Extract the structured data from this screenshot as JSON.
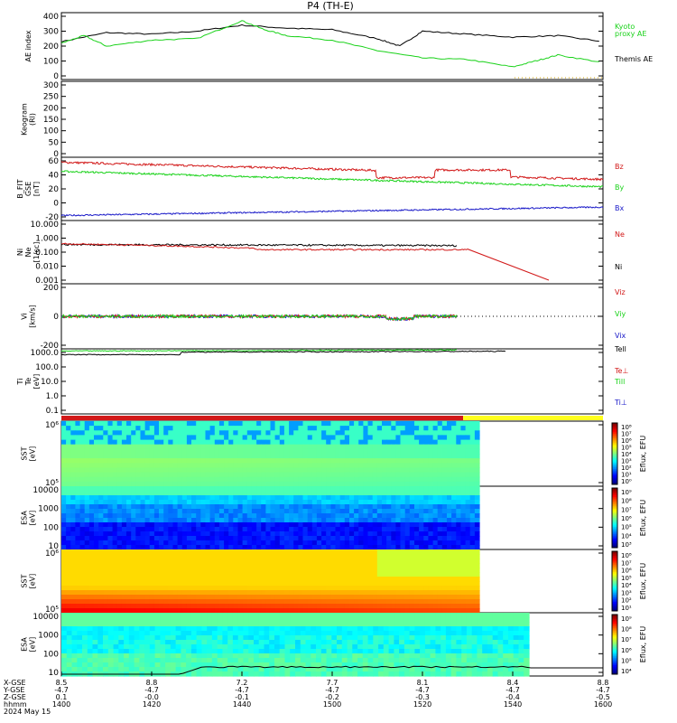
{
  "title": "P4  (TH-E)",
  "colors": {
    "black": "#000000",
    "green": "#19d219",
    "red": "#d21919",
    "blue": "#1919c8",
    "orange_dotted": "#d2a000",
    "bar_red": "#d21919",
    "bar_yellow": "#ffff1e"
  },
  "panels": {
    "ae": {
      "ylabel": "AE index",
      "ticks": [
        "400",
        "300",
        "200",
        "100",
        "0"
      ],
      "legend": [
        {
          "text": "Kyoto",
          "color": "#19d219"
        },
        {
          "text": "proxy AE",
          "color": "#19d219"
        },
        {
          "text": "Themis AE",
          "color": "#000000"
        }
      ]
    },
    "keogram": {
      "ylabel_lines": [
        "Keogram",
        "(Rl)"
      ],
      "ticks": [
        "300",
        "250",
        "200",
        "150",
        "100",
        "50",
        "0"
      ]
    },
    "bfield": {
      "ylabel_lines": [
        "B_FIT",
        "GSE",
        "[nT]"
      ],
      "ticks": [
        "60",
        "40",
        "20",
        "0",
        "-20"
      ],
      "legend": [
        {
          "text": "Bz",
          "color": "#d21919"
        },
        {
          "text": "By",
          "color": "#19d219"
        },
        {
          "text": "Bx",
          "color": "#1919c8"
        }
      ]
    },
    "density": {
      "ylabel_lines": [
        "Ni",
        "Ne",
        "[1/cc]"
      ],
      "ticks": [
        "10.000",
        "1.000",
        "0.100",
        "0.010",
        "0.001"
      ],
      "legend": [
        {
          "text": "Ne",
          "color": "#d21919"
        },
        {
          "text": "Ni",
          "color": "#000000"
        }
      ]
    },
    "velocity": {
      "ylabel_lines": [
        "Vi",
        "[km/s]"
      ],
      "ticks": [
        "200",
        "0",
        "-200"
      ],
      "legend": [
        {
          "text": "Viz",
          "color": "#d21919"
        },
        {
          "text": "Viy",
          "color": "#19d219"
        },
        {
          "text": "Vix",
          "color": "#1919c8"
        }
      ]
    },
    "temperature": {
      "ylabel_lines": [
        "Ti",
        "Te",
        "[eV]"
      ],
      "ticks": [
        "1000.0",
        "100.0",
        "10.0",
        "1.0",
        "0.1"
      ],
      "legend": [
        {
          "text": "Tell",
          "color": "#000000"
        },
        {
          "text": "Te⊥",
          "color": "#d21919"
        },
        {
          "text": "Till",
          "color": "#19d219"
        },
        {
          "text": "Ti⊥",
          "color": "#1919c8"
        }
      ]
    },
    "sst_e": {
      "ylabel_lines": [
        "SST",
        "[eV]"
      ],
      "ticks": [
        "10⁶",
        "10⁵"
      ],
      "cbar_label": "Eflux, EFU",
      "cbar_ticks": [
        "10⁸",
        "10⁷",
        "10⁶",
        "10⁵",
        "10⁴",
        "10³",
        "10²",
        "10¹",
        "10⁰"
      ]
    },
    "esa_e": {
      "ylabel_lines": [
        "ESA",
        "[eV]"
      ],
      "ticks": [
        "10000",
        "1000",
        "100",
        "10"
      ],
      "cbar_label": "Eflux, EFU",
      "cbar_ticks": [
        "10⁹",
        "10⁸",
        "10⁷",
        "10⁶",
        "10⁵",
        "10⁴",
        "10³"
      ]
    },
    "sst_i": {
      "ylabel_lines": [
        "SST",
        "[eV]"
      ],
      "ticks": [
        "10⁶",
        "10⁵"
      ],
      "cbar_label": "Eflux, EFU",
      "cbar_ticks": [
        "10⁸",
        "10⁷",
        "10⁶",
        "10⁵",
        "10⁴",
        "10³",
        "10²",
        "10¹"
      ]
    },
    "esa_i": {
      "ylabel_lines": [
        "ESA",
        "[eV]"
      ],
      "ticks": [
        "10000",
        "1000",
        "100",
        "10"
      ],
      "cbar_label": "Eflux, EFU",
      "cbar_ticks": [
        "10⁹",
        "10⁸",
        "10⁷",
        "10⁶",
        "10⁵",
        "10⁴"
      ]
    }
  },
  "xaxis": {
    "row_labels": [
      "X-GSE",
      "Y-GSE",
      "Z-GSE",
      "hhmm",
      "2024 May 15"
    ],
    "columns": [
      [
        "8.5",
        "-4.7",
        "0.1",
        "1400"
      ],
      [
        "8.8",
        "-4.7",
        "-0.0",
        "1420"
      ],
      [
        "7.2",
        "-4.7",
        "-0.1",
        "1440"
      ],
      [
        "7.7",
        "-4.7",
        "-0.2",
        "1500"
      ],
      [
        "8.1",
        "-4.7",
        "-0.3",
        "1520"
      ],
      [
        "8.4",
        "-4.7",
        "-0.4",
        "1540"
      ],
      [
        "8.8",
        "-4.7",
        "-0.5",
        "1600"
      ]
    ]
  },
  "chart_data": {
    "type": "line",
    "title": "P4  (TH-E)",
    "x_unit": "hhmm UT",
    "x_range": [
      "1400",
      "1600"
    ],
    "series": [
      {
        "name": "Themis AE",
        "x": [
          "1400",
          "1410",
          "1420",
          "1430",
          "1440",
          "1450",
          "1500",
          "1510",
          "1515",
          "1520",
          "1530",
          "1540",
          "1550",
          "1600"
        ],
        "values": [
          230,
          290,
          280,
          300,
          340,
          320,
          310,
          250,
          200,
          300,
          280,
          260,
          270,
          230
        ]
      },
      {
        "name": "Kyoto proxy AE",
        "x": [
          "1400",
          "1405",
          "1410",
          "1420",
          "1430",
          "1440",
          "1445",
          "1450",
          "1500",
          "1510",
          "1520",
          "1530",
          "1540",
          "1545",
          "1550",
          "1600"
        ],
        "values": [
          220,
          270,
          200,
          240,
          250,
          370,
          310,
          270,
          240,
          170,
          120,
          110,
          60,
          100,
          140,
          90
        ]
      }
    ]
  }
}
